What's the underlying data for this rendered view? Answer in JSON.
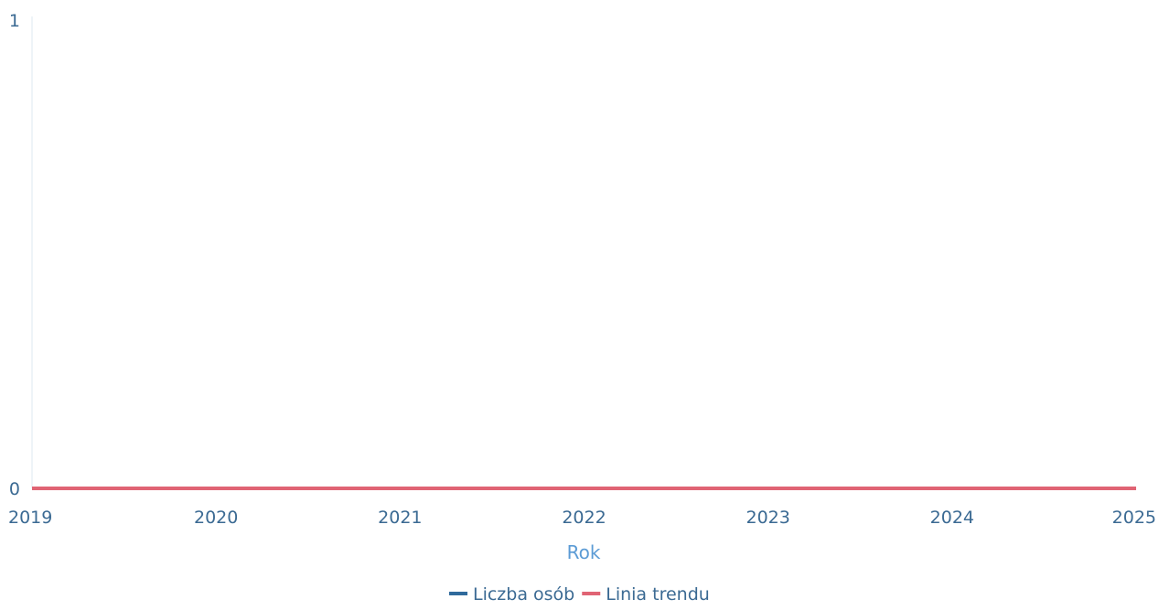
{
  "chart_data": {
    "type": "line",
    "x": [
      2019,
      2020,
      2021,
      2022,
      2023,
      2024,
      2025
    ],
    "x_tick_labels": [
      "2019",
      "2020",
      "2021",
      "2022",
      "2023",
      "2024",
      "2025"
    ],
    "y_tick_labels": [
      "0",
      "1"
    ],
    "xlabel": "Rok",
    "ylabel": "",
    "xlim": [
      2019,
      2025
    ],
    "ylim": [
      0,
      1
    ],
    "grid": false,
    "legend_position": "bottom-center",
    "series": [
      {
        "name": "Liczba osób",
        "color": "#2f6a9c",
        "values": [
          0,
          0,
          0,
          0,
          0,
          0,
          0
        ]
      },
      {
        "name": "Linia trendu",
        "color": "#e06474",
        "values": [
          0,
          0,
          0,
          0,
          0,
          0,
          0
        ]
      }
    ],
    "colors": {
      "axis_text": "#3b6a93",
      "axis_title": "#5b9bd5",
      "axis_line": "#dde9f2"
    }
  }
}
